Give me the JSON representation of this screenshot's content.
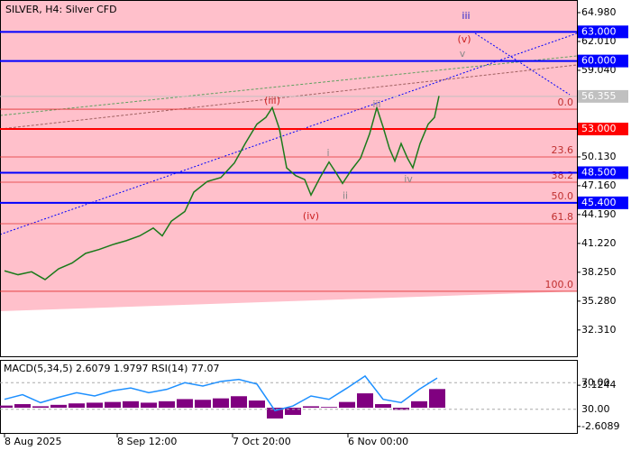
{
  "chart_data": {
    "type": "line",
    "title": "SILVER, H4:  Silver CFD",
    "xlim": [
      0,
      640
    ],
    "ylim": [
      29.6,
      66.28
    ],
    "xticks": [
      {
        "value": 5,
        "label": "8 Aug 2025"
      },
      {
        "value": 130,
        "label": "8 Sep 12:00"
      },
      {
        "value": 258,
        "label": "7 Oct 20:00"
      },
      {
        "value": 386,
        "label": "6 Nov 00:00"
      }
    ],
    "yticks": [
      {
        "value": 64.98,
        "label": "64.980"
      },
      {
        "value": 62.01,
        "label": "62.010"
      },
      {
        "value": 59.04,
        "label": "59.040"
      },
      {
        "value": 50.13,
        "label": "50.130"
      },
      {
        "value": 47.16,
        "label": "47.160"
      },
      {
        "value": 44.19,
        "label": "44.190"
      },
      {
        "value": 41.22,
        "label": "41.220"
      },
      {
        "value": 38.25,
        "label": "38.250"
      },
      {
        "value": 35.28,
        "label": "35.280"
      },
      {
        "value": 32.31,
        "label": "32.310"
      }
    ],
    "series": [
      {
        "name": "SILVER",
        "color": "#1a7a1a",
        "x": [
          5,
          20,
          35,
          50,
          65,
          80,
          95,
          110,
          125,
          140,
          155,
          170,
          180,
          190,
          205,
          215,
          230,
          245,
          260,
          272,
          285,
          295,
          302,
          310,
          318,
          328,
          338,
          345,
          355,
          365,
          372,
          380,
          390,
          400,
          410,
          418,
          425,
          432,
          438,
          445,
          452,
          458,
          466,
          475,
          482,
          487
        ],
        "values": [
          38.4,
          38.0,
          38.3,
          37.5,
          38.6,
          39.2,
          40.2,
          40.6,
          41.1,
          41.5,
          42.0,
          42.8,
          42.0,
          43.5,
          44.5,
          46.5,
          47.6,
          48.0,
          49.5,
          51.5,
          53.5,
          54.2,
          55.2,
          53.0,
          49.0,
          48.2,
          47.8,
          46.2,
          48.0,
          49.6,
          48.6,
          47.4,
          48.8,
          50.0,
          52.5,
          55.2,
          53.2,
          51.0,
          49.7,
          51.5,
          50.0,
          49.0,
          51.5,
          53.5,
          54.2,
          56.4
        ]
      }
    ],
    "levels": [
      {
        "value": 63.0,
        "label": "63.000",
        "color": "#0000ff"
      },
      {
        "value": 60.0,
        "label": "60.000",
        "color": "#0000ff"
      },
      {
        "value": 56.355,
        "label": "56.355",
        "color": "#c0c0c0"
      },
      {
        "value": 53.0,
        "label": "53.000",
        "color": "#ff0000"
      },
      {
        "value": 48.5,
        "label": "48.500",
        "color": "#0000ff"
      },
      {
        "value": 45.4,
        "label": "45.400",
        "color": "#0000ff"
      }
    ],
    "fib": [
      {
        "value": 55.04,
        "label": "0.0"
      },
      {
        "value": 50.12,
        "label": "23.6"
      },
      {
        "value": 47.52,
        "label": "38.2"
      },
      {
        "value": 45.39,
        "label": "50.0"
      },
      {
        "value": 43.25,
        "label": "61.8"
      },
      {
        "value": 36.29,
        "label": "100.0"
      }
    ],
    "waves": [
      {
        "label": "(iii)",
        "x": 302,
        "y": 55.9,
        "color": "#cc2222"
      },
      {
        "label": "(iv)",
        "x": 345,
        "y": 44.0,
        "color": "#cc2222"
      },
      {
        "label": "(v)",
        "x": 515,
        "y": 62.2,
        "color": "#cc2222"
      },
      {
        "label": "iii",
        "x": 517,
        "y": 64.6,
        "color": "#2222cc"
      },
      {
        "label": "iii",
        "x": 418,
        "y": 55.5,
        "color": "#888888"
      },
      {
        "label": "i",
        "x": 364,
        "y": 50.5,
        "color": "#888888"
      },
      {
        "label": "ii",
        "x": 383,
        "y": 46.1,
        "color": "#888888"
      },
      {
        "label": "iv",
        "x": 453,
        "y": 47.8,
        "color": "#888888"
      },
      {
        "label": "v",
        "x": 513,
        "y": 60.7,
        "color": "#888888"
      }
    ],
    "indicator": {
      "label": "MACD(5,34,5) 2.6079 1.9797 RSI(14) 77.07",
      "ylim": [
        -7,
        103
      ],
      "yticks": [
        {
          "value": 70,
          "label": "70.00"
        },
        {
          "value": 30,
          "label": "30.00"
        }
      ],
      "y2lim": [
        -3.64,
        6.53
      ],
      "y2ticks": [
        {
          "value": 3.1244,
          "label": "3.1244"
        },
        {
          "value": -2.6089,
          "label": "-2.6089"
        }
      ],
      "x": [
        5,
        25,
        45,
        65,
        85,
        105,
        125,
        145,
        165,
        185,
        205,
        225,
        245,
        265,
        285,
        305,
        325,
        345,
        365,
        385,
        405,
        425,
        445,
        465,
        485
      ],
      "rsi": [
        45,
        52,
        40,
        48,
        55,
        50,
        58,
        62,
        55,
        60,
        70,
        65,
        72,
        75,
        68,
        28,
        35,
        50,
        45,
        62,
        80,
        45,
        40,
        60,
        77
      ],
      "macd": [
        0.3,
        0.5,
        0.2,
        0.4,
        0.6,
        0.7,
        0.8,
        0.9,
        0.7,
        0.9,
        1.2,
        1.1,
        1.3,
        1.6,
        1.0,
        -1.5,
        -1.0,
        0.2,
        0.1,
        0.8,
        2.0,
        0.5,
        -0.3,
        0.9,
        2.6
      ]
    }
  }
}
